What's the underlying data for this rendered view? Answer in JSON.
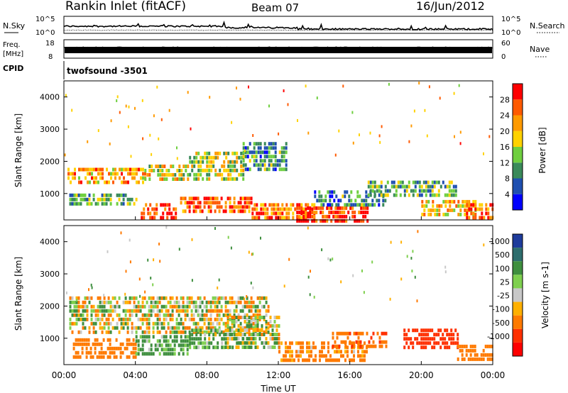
{
  "header": {
    "title": "Rankin Inlet (fitACF)",
    "beam": "Beam 07",
    "date": "16/Jun/2012"
  },
  "noise_panel": {
    "left_label": "N.Sky",
    "right_label": "N.Search",
    "left_ticks": [
      "10^5",
      "10^0"
    ],
    "right_ticks": [
      "10^5",
      "10^0"
    ]
  },
  "freq_panel": {
    "left_label_line1": "Freq.",
    "left_label_line2": "[MHz]",
    "right_label": "Nave",
    "left_ticks": [
      "18",
      "8"
    ],
    "right_ticks": [
      "60",
      "0"
    ]
  },
  "cpid_panel": {
    "label": "CPID",
    "value": "twofsound -3501"
  },
  "colors": {
    "power_scale": [
      "#0000ff",
      "#1f4fb0",
      "#3a8a5a",
      "#6fcf3f",
      "#ffd200",
      "#ff9a00",
      "#ff5a00",
      "#ff0000"
    ],
    "velocity_scale": [
      "#1e3c9c",
      "#2e6e6e",
      "#3f8f3f",
      "#7fd04f",
      "#c8c8c8",
      "#ffb000",
      "#ff7a00",
      "#ff3000",
      "#ff0000"
    ]
  },
  "chart_data": [
    {
      "type": "heatmap",
      "name": "power",
      "ylabel": "Slant Range [km]",
      "ylim": [
        180,
        4500
      ],
      "y_ticks": [
        1000,
        2000,
        3000,
        4000
      ],
      "xlim": [
        "00:00",
        "24:00"
      ],
      "colorbar_label": "Power [dB]",
      "colorbar_ticks": [
        "4",
        "8",
        "12",
        "16",
        "20",
        "24",
        "28"
      ],
      "colorbar_range": [
        0,
        32
      ],
      "blobs": [
        {
          "t": [
            0.2,
            4.5
          ],
          "r": [
            1300,
            1800
          ],
          "v": 22
        },
        {
          "t": [
            0.3,
            4.0
          ],
          "r": [
            700,
            1000
          ],
          "v": 12
        },
        {
          "t": [
            4.3,
            6.3
          ],
          "r": [
            300,
            700
          ],
          "v": 28
        },
        {
          "t": [
            4.5,
            7.0
          ],
          "r": [
            1400,
            1900
          ],
          "v": 18
        },
        {
          "t": [
            6.5,
            10.5
          ],
          "r": [
            500,
            900
          ],
          "v": 26
        },
        {
          "t": [
            7.0,
            10.0
          ],
          "r": [
            1400,
            2300
          ],
          "v": 16
        },
        {
          "t": [
            10.0,
            12.5
          ],
          "r": [
            1700,
            2600
          ],
          "v": 10
        },
        {
          "t": [
            10.5,
            14.0
          ],
          "r": [
            200,
            700
          ],
          "v": 24
        },
        {
          "t": [
            13.0,
            17.0
          ],
          "r": [
            200,
            600
          ],
          "v": 28
        },
        {
          "t": [
            14.0,
            18.0
          ],
          "r": [
            700,
            1100
          ],
          "v": 10
        },
        {
          "t": [
            17.0,
            22.0
          ],
          "r": [
            900,
            1400
          ],
          "v": 12
        },
        {
          "t": [
            20.0,
            23.0
          ],
          "r": [
            300,
            800
          ],
          "v": 20
        },
        {
          "t": [
            22.5,
            24.0
          ],
          "r": [
            300,
            700
          ],
          "v": 26
        }
      ]
    },
    {
      "type": "heatmap",
      "name": "velocity",
      "ylabel": "Slant Range [km]",
      "ylim": [
        180,
        4500
      ],
      "y_ticks": [
        1000,
        2000,
        3000,
        4000
      ],
      "xlabel": "Time UT",
      "x_ticks": [
        "00:00",
        "04:00",
        "08:00",
        "12:00",
        "16:00",
        "20:00",
        "00:00"
      ],
      "colorbar_label": "Velocity [m s-1]",
      "colorbar_ticks": [
        "1000",
        "500",
        "100",
        "25",
        "-25",
        "-100",
        "-500",
        "-1000"
      ],
      "blobs": [
        {
          "t": [
            0.3,
            11.5
          ],
          "r": [
            1200,
            2300
          ],
          "v": 0
        },
        {
          "t": [
            0.5,
            4.0
          ],
          "r": [
            400,
            1000
          ],
          "v": -300
        },
        {
          "t": [
            4.0,
            7.0
          ],
          "r": [
            500,
            1100
          ],
          "v": 200
        },
        {
          "t": [
            7.0,
            10.0
          ],
          "r": [
            700,
            1300
          ],
          "v": 150
        },
        {
          "t": [
            9.0,
            12.0
          ],
          "r": [
            700,
            1700
          ],
          "v": 60
        },
        {
          "t": [
            12.0,
            17.0
          ],
          "r": [
            300,
            900
          ],
          "v": -200
        },
        {
          "t": [
            15.0,
            18.0
          ],
          "r": [
            800,
            1200
          ],
          "v": -400
        },
        {
          "t": [
            19.0,
            22.0
          ],
          "r": [
            700,
            1300
          ],
          "v": -700
        },
        {
          "t": [
            22.0,
            24.0
          ],
          "r": [
            300,
            800
          ],
          "v": -300
        }
      ]
    }
  ]
}
